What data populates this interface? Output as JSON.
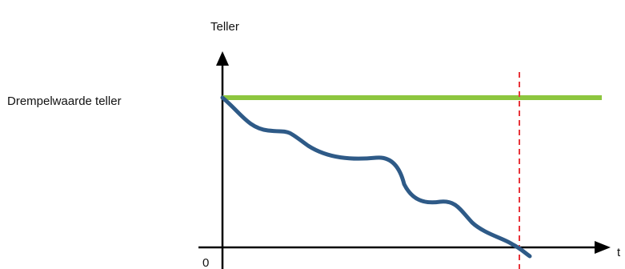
{
  "labels": {
    "y_axis": "Teller",
    "x_axis": "t",
    "origin": "0",
    "threshold": "Drempelwaarde teller"
  },
  "colors": {
    "threshold_line": "#8dc63f",
    "counter_curve": "#2e5a87",
    "marker_line": "#e8343a",
    "axes": "#000000"
  },
  "chart_data": {
    "type": "line",
    "title": "",
    "ylabel": "Teller",
    "xlabel": "t",
    "threshold_label": "Drempelwaarde teller",
    "notes": "Counter curve starts at the threshold value and decreases over time; dashed red line marks the moment the counter reaches zero."
  }
}
